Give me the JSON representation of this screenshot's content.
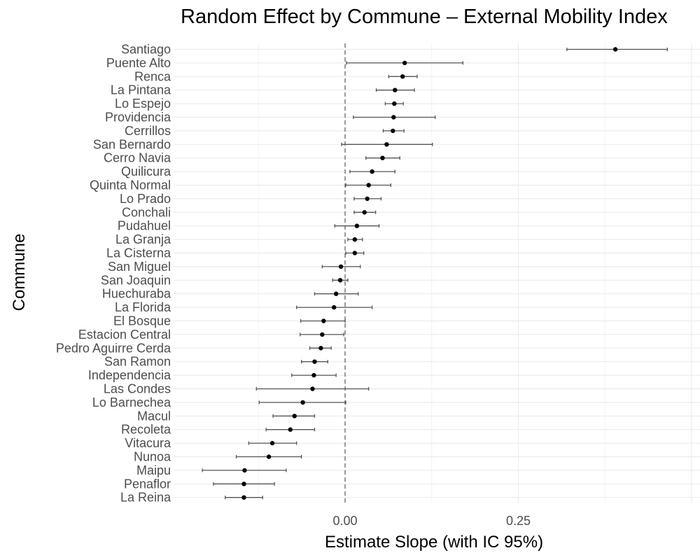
{
  "chart_data": {
    "type": "scatter",
    "title": "Random Effect by Commune – External Mobility Index",
    "xlabel": "Estimate Slope (with IC 95%)",
    "ylabel": "Commune",
    "xlim": [
      -0.25,
      0.5
    ],
    "x_ticks": [
      0.0,
      0.25
    ],
    "x_tick_labels": [
      "0.00",
      "0.25"
    ],
    "reference_line": {
      "x": 0,
      "style": "dashed"
    },
    "grid": true,
    "series": [
      {
        "points": [
          {
            "commune": "Santiago",
            "estimate": 0.39,
            "lower": 0.32,
            "upper": 0.465
          },
          {
            "commune": "Puente Alto",
            "estimate": 0.086,
            "lower": 0.002,
            "upper": 0.17
          },
          {
            "commune": "Renca",
            "estimate": 0.083,
            "lower": 0.063,
            "upper": 0.104
          },
          {
            "commune": "La Pintana",
            "estimate": 0.072,
            "lower": 0.045,
            "upper": 0.1
          },
          {
            "commune": "Lo Espejo",
            "estimate": 0.071,
            "lower": 0.058,
            "upper": 0.084
          },
          {
            "commune": "Providencia",
            "estimate": 0.07,
            "lower": 0.012,
            "upper": 0.13
          },
          {
            "commune": "Cerrillos",
            "estimate": 0.069,
            "lower": 0.055,
            "upper": 0.085
          },
          {
            "commune": "San Bernardo",
            "estimate": 0.06,
            "lower": -0.005,
            "upper": 0.126
          },
          {
            "commune": "Cerro Navia",
            "estimate": 0.054,
            "lower": 0.03,
            "upper": 0.079
          },
          {
            "commune": "Quilicura",
            "estimate": 0.039,
            "lower": 0.007,
            "upper": 0.072
          },
          {
            "commune": "Quinta Normal",
            "estimate": 0.034,
            "lower": 0.001,
            "upper": 0.066
          },
          {
            "commune": "Lo Prado",
            "estimate": 0.032,
            "lower": 0.013,
            "upper": 0.052
          },
          {
            "commune": "Conchali",
            "estimate": 0.028,
            "lower": 0.013,
            "upper": 0.044
          },
          {
            "commune": "Pudahuel",
            "estimate": 0.017,
            "lower": -0.015,
            "upper": 0.049
          },
          {
            "commune": "La Granja",
            "estimate": 0.014,
            "lower": 0.004,
            "upper": 0.025
          },
          {
            "commune": "La Cisterna",
            "estimate": 0.014,
            "lower": 0.001,
            "upper": 0.027
          },
          {
            "commune": "San Miguel",
            "estimate": -0.006,
            "lower": -0.033,
            "upper": 0.022
          },
          {
            "commune": "San Joaquin",
            "estimate": -0.007,
            "lower": -0.018,
            "upper": 0.004
          },
          {
            "commune": "Huechuraba",
            "estimate": -0.013,
            "lower": -0.044,
            "upper": 0.019
          },
          {
            "commune": "La Florida",
            "estimate": -0.016,
            "lower": -0.07,
            "upper": 0.039
          },
          {
            "commune": "El Bosque",
            "estimate": -0.031,
            "lower": -0.064,
            "upper": 0.0
          },
          {
            "commune": "Estacion Central",
            "estimate": -0.033,
            "lower": -0.065,
            "upper": -0.002
          },
          {
            "commune": "Pedro Aguirre Cerda",
            "estimate": -0.035,
            "lower": -0.051,
            "upper": -0.02
          },
          {
            "commune": "San Ramon",
            "estimate": -0.044,
            "lower": -0.063,
            "upper": -0.025
          },
          {
            "commune": "Independencia",
            "estimate": -0.045,
            "lower": -0.077,
            "upper": -0.013
          },
          {
            "commune": "Las Condes",
            "estimate": -0.047,
            "lower": -0.128,
            "upper": 0.034
          },
          {
            "commune": "Lo Barnechea",
            "estimate": -0.061,
            "lower": -0.124,
            "upper": 0.001
          },
          {
            "commune": "Macul",
            "estimate": -0.073,
            "lower": -0.104,
            "upper": -0.044
          },
          {
            "commune": "Recoleta",
            "estimate": -0.079,
            "lower": -0.114,
            "upper": -0.044
          },
          {
            "commune": "Vitacura",
            "estimate": -0.105,
            "lower": -0.139,
            "upper": -0.07
          },
          {
            "commune": "Nunoa",
            "estimate": -0.11,
            "lower": -0.157,
            "upper": -0.063
          },
          {
            "commune": "Maipu",
            "estimate": -0.145,
            "lower": -0.206,
            "upper": -0.085
          },
          {
            "commune": "Penaflor",
            "estimate": -0.146,
            "lower": -0.19,
            "upper": -0.102
          },
          {
            "commune": "La Reina",
            "estimate": -0.146,
            "lower": -0.173,
            "upper": -0.119
          }
        ]
      }
    ],
    "colors": {
      "point": "#000000",
      "errorbar": "#555555",
      "grid_major": "#ebebeb",
      "grid_minor": "#f4f4f4",
      "reference_line": "#666666"
    }
  }
}
